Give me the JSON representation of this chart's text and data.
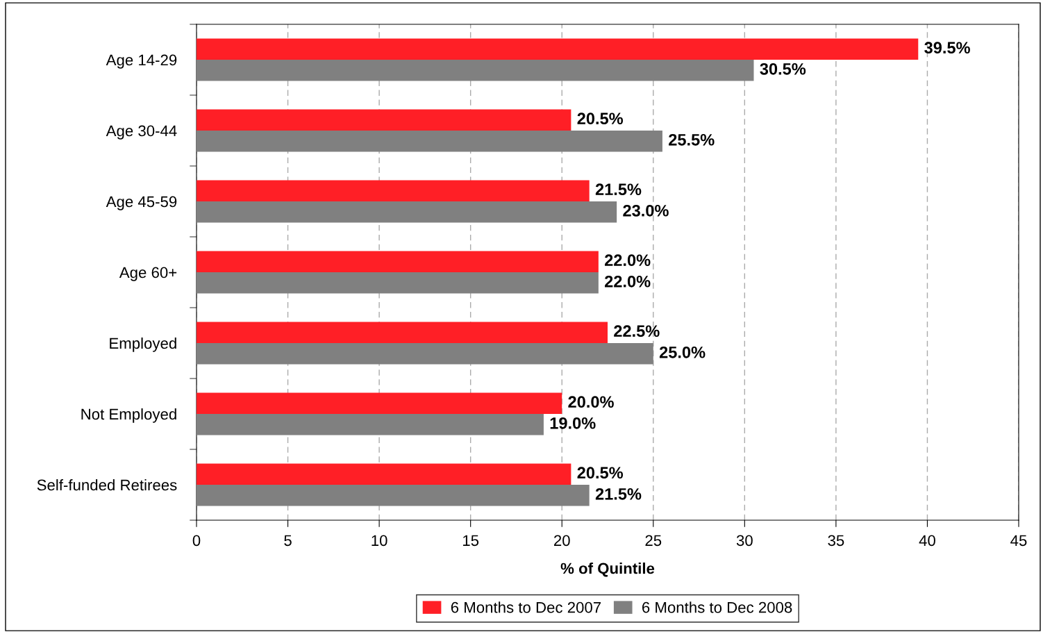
{
  "chart_data": {
    "type": "bar",
    "orientation": "horizontal",
    "xlabel": "% of Quintile",
    "categories": [
      "Age 14-29",
      "Age 30-44",
      "Age 45-59",
      "Age 60+",
      "Employed",
      "Not Employed",
      "Self-funded Retirees"
    ],
    "series": [
      {
        "name": "6 Months to Dec 2007",
        "color": "#ff1f26",
        "values": [
          39.5,
          20.5,
          21.5,
          22.0,
          22.5,
          20.0,
          20.5
        ],
        "value_labels": [
          "39.5%",
          "20.5%",
          "21.5%",
          "22.0%",
          "22.5%",
          "20.0%",
          "20.5%"
        ]
      },
      {
        "name": "6 Months to Dec 2008",
        "color": "#808080",
        "values": [
          30.5,
          25.5,
          23.0,
          22.0,
          25.0,
          19.0,
          21.5
        ],
        "value_labels": [
          "30.5%",
          "25.5%",
          "23.0%",
          "22.0%",
          "25.0%",
          "19.0%",
          "21.5%"
        ]
      }
    ],
    "xlim": [
      0,
      45
    ],
    "xticks": [
      0,
      5,
      10,
      15,
      20,
      25,
      30,
      35,
      40,
      45
    ],
    "grid": "x",
    "legend": "bottom"
  }
}
